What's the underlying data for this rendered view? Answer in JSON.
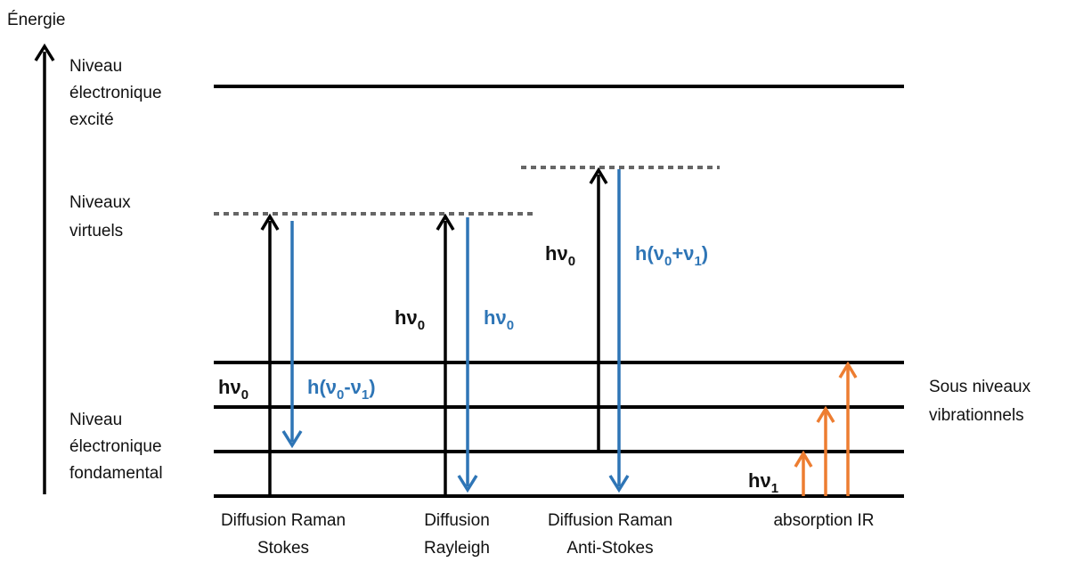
{
  "axis_label": "Énergie",
  "left_labels": {
    "excited": [
      "Niveau",
      "électronique",
      "excité"
    ],
    "virtual": [
      "Niveaux",
      "virtuels"
    ],
    "ground": [
      "Niveau",
      "électronique",
      "fondamental"
    ]
  },
  "right_label": [
    "Sous niveaux",
    "vibrationnels"
  ],
  "processes": [
    {
      "name": [
        "Diffusion Raman",
        "Stokes"
      ],
      "up": [
        "hν",
        "0"
      ],
      "down": [
        "h(ν",
        "0",
        "-ν",
        "1",
        ")"
      ]
    },
    {
      "name": [
        "Diffusion",
        "Rayleigh"
      ],
      "up": [
        "hν",
        "0"
      ],
      "down": [
        "hν",
        "0"
      ]
    },
    {
      "name": [
        "Diffusion Raman",
        "Anti-Stokes"
      ],
      "up": [
        "hν",
        "0"
      ],
      "down": [
        "h(ν",
        "0",
        "+ν",
        "1",
        ")"
      ]
    },
    {
      "name": [
        "absorption IR"
      ],
      "up": [
        "hν",
        "1"
      ]
    }
  ]
}
